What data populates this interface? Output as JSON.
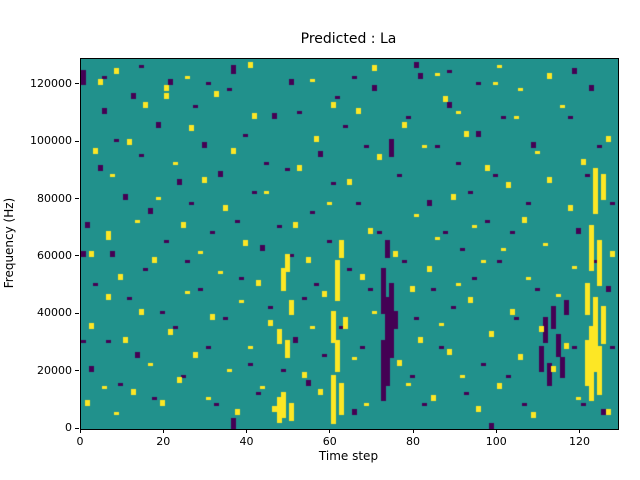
{
  "chart_data": {
    "type": "heatmap",
    "title": "Predicted : La",
    "xlabel": "Time step",
    "ylabel": "Frequency (Hz)",
    "x_range": [
      0,
      129
    ],
    "y_range": [
      0,
      129
    ],
    "y_unit_scale": 1000,
    "x_ticks": {
      "values": [
        0,
        20,
        40,
        60,
        80,
        100,
        120
      ],
      "labels": [
        "0",
        "20",
        "40",
        "60",
        "80",
        "100",
        "120"
      ]
    },
    "y_ticks": {
      "values": [
        0,
        20,
        40,
        60,
        80,
        100,
        120
      ],
      "labels": [
        "0",
        "20000",
        "40000",
        "60000",
        "80000",
        "100000",
        "120000"
      ]
    },
    "grid": false,
    "legend": "none",
    "colors": {
      "background": "#21918c",
      "low": "#440154",
      "high": "#fde725"
    },
    "yellow_runs": [
      [
        1,
        8,
        9
      ],
      [
        2,
        35,
        36
      ],
      [
        2,
        60,
        61
      ],
      [
        3,
        96,
        97
      ],
      [
        4,
        120,
        121
      ],
      [
        5,
        14,
        14
      ],
      [
        6,
        45,
        46
      ],
      [
        6,
        66,
        68
      ],
      [
        7,
        88,
        88
      ],
      [
        8,
        5,
        5
      ],
      [
        8,
        124,
        125
      ],
      [
        9,
        52,
        53
      ],
      [
        10,
        30,
        31
      ],
      [
        11,
        99,
        100
      ],
      [
        12,
        12,
        13
      ],
      [
        13,
        72,
        72
      ],
      [
        14,
        40,
        41
      ],
      [
        15,
        112,
        113
      ],
      [
        16,
        22,
        22
      ],
      [
        17,
        58,
        59
      ],
      [
        18,
        80,
        80
      ],
      [
        19,
        8,
        9
      ],
      [
        20,
        115,
        116
      ],
      [
        20,
        118,
        119
      ],
      [
        21,
        33,
        34
      ],
      [
        22,
        92,
        92
      ],
      [
        23,
        16,
        17
      ],
      [
        24,
        70,
        71
      ],
      [
        25,
        47,
        47
      ],
      [
        25,
        122,
        122
      ],
      [
        26,
        104,
        105
      ],
      [
        27,
        25,
        26
      ],
      [
        28,
        61,
        61
      ],
      [
        29,
        86,
        87
      ],
      [
        30,
        10,
        10
      ],
      [
        31,
        38,
        39
      ],
      [
        32,
        116,
        117
      ],
      [
        33,
        54,
        54
      ],
      [
        34,
        76,
        77
      ],
      [
        35,
        20,
        20
      ],
      [
        36,
        96,
        97
      ],
      [
        37,
        5,
        6
      ],
      [
        38,
        44,
        44
      ],
      [
        39,
        64,
        65
      ],
      [
        40,
        28,
        28
      ],
      [
        40,
        126,
        127
      ],
      [
        41,
        108,
        109
      ],
      [
        42,
        50,
        51
      ],
      [
        43,
        14,
        14
      ],
      [
        44,
        82,
        82
      ],
      [
        45,
        36,
        37
      ],
      [
        46,
        6,
        7
      ],
      [
        47,
        2,
        10
      ],
      [
        47,
        30,
        34
      ],
      [
        48,
        4,
        12
      ],
      [
        48,
        48,
        55
      ],
      [
        49,
        25,
        30
      ],
      [
        49,
        55,
        60
      ],
      [
        50,
        3,
        8
      ],
      [
        50,
        40,
        44
      ],
      [
        51,
        70,
        71
      ],
      [
        52,
        90,
        91
      ],
      [
        53,
        18,
        19
      ],
      [
        54,
        58,
        59
      ],
      [
        55,
        35,
        35
      ],
      [
        55,
        121,
        121
      ],
      [
        56,
        100,
        101
      ],
      [
        57,
        12,
        13
      ],
      [
        58,
        46,
        47
      ],
      [
        59,
        78,
        78
      ],
      [
        60,
        2,
        18
      ],
      [
        60,
        30,
        40
      ],
      [
        60,
        112,
        113
      ],
      [
        61,
        20,
        30
      ],
      [
        61,
        45,
        58
      ],
      [
        62,
        5,
        15
      ],
      [
        62,
        60,
        65
      ],
      [
        63,
        35,
        38
      ],
      [
        64,
        85,
        86
      ],
      [
        65,
        24,
        24
      ],
      [
        66,
        110,
        111
      ],
      [
        67,
        52,
        53
      ],
      [
        68,
        8,
        8
      ],
      [
        69,
        68,
        69
      ],
      [
        70,
        40,
        40
      ],
      [
        70,
        125,
        126
      ],
      [
        71,
        94,
        95
      ],
      [
        75,
        60,
        61
      ],
      [
        76,
        22,
        23
      ],
      [
        77,
        105,
        106
      ],
      [
        78,
        15,
        15
      ],
      [
        79,
        48,
        49
      ],
      [
        80,
        74,
        74
      ],
      [
        81,
        30,
        31
      ],
      [
        82,
        98,
        98
      ],
      [
        83,
        55,
        56
      ],
      [
        84,
        10,
        11
      ],
      [
        85,
        66,
        66
      ],
      [
        85,
        123,
        123
      ],
      [
        86,
        36,
        36
      ],
      [
        87,
        114,
        115
      ],
      [
        88,
        26,
        27
      ],
      [
        89,
        80,
        81
      ],
      [
        90,
        50,
        50
      ],
      [
        90,
        110,
        110
      ],
      [
        91,
        18,
        18
      ],
      [
        92,
        102,
        103
      ],
      [
        93,
        44,
        45
      ],
      [
        94,
        70,
        70
      ],
      [
        95,
        6,
        7
      ],
      [
        96,
        58,
        58
      ],
      [
        97,
        90,
        91
      ],
      [
        98,
        32,
        33
      ],
      [
        99,
        120,
        120
      ],
      [
        100,
        14,
        15
      ],
      [
        100,
        126,
        126
      ],
      [
        101,
        62,
        62
      ],
      [
        102,
        84,
        85
      ],
      [
        103,
        40,
        41
      ],
      [
        104,
        108,
        108
      ],
      [
        105,
        24,
        25
      ],
      [
        105,
        118,
        118
      ],
      [
        106,
        72,
        73
      ],
      [
        107,
        52,
        52
      ],
      [
        108,
        4,
        5
      ],
      [
        109,
        96,
        96
      ],
      [
        110,
        34,
        35
      ],
      [
        111,
        64,
        64
      ],
      [
        112,
        86,
        87
      ],
      [
        112,
        122,
        123
      ],
      [
        113,
        20,
        21
      ],
      [
        114,
        46,
        46
      ],
      [
        115,
        112,
        112
      ],
      [
        116,
        28,
        29
      ],
      [
        117,
        76,
        77
      ],
      [
        118,
        56,
        56
      ],
      [
        119,
        10,
        10
      ],
      [
        120,
        92,
        93
      ],
      [
        121,
        15,
        30
      ],
      [
        121,
        40,
        50
      ],
      [
        122,
        10,
        35
      ],
      [
        122,
        55,
        70
      ],
      [
        123,
        20,
        45
      ],
      [
        123,
        75,
        90
      ],
      [
        124,
        12,
        28
      ],
      [
        124,
        50,
        65
      ],
      [
        125,
        30,
        42
      ],
      [
        125,
        80,
        88
      ],
      [
        126,
        5,
        6
      ],
      [
        126,
        100,
        101
      ],
      [
        127,
        60,
        61
      ]
    ],
    "purple_runs": [
      [
        0,
        30,
        30
      ],
      [
        0,
        60,
        61
      ],
      [
        0,
        120,
        124
      ],
      [
        1,
        70,
        71
      ],
      [
        2,
        20,
        21
      ],
      [
        3,
        50,
        50
      ],
      [
        4,
        90,
        91
      ],
      [
        5,
        110,
        111
      ],
      [
        5,
        122,
        122
      ],
      [
        6,
        30,
        30
      ],
      [
        7,
        60,
        61
      ],
      [
        8,
        100,
        100
      ],
      [
        9,
        15,
        15
      ],
      [
        10,
        80,
        81
      ],
      [
        11,
        45,
        45
      ],
      [
        12,
        115,
        116
      ],
      [
        13,
        25,
        26
      ],
      [
        14,
        95,
        95
      ],
      [
        14,
        126,
        126
      ],
      [
        15,
        55,
        55
      ],
      [
        16,
        75,
        76
      ],
      [
        17,
        10,
        10
      ],
      [
        18,
        105,
        106
      ],
      [
        19,
        40,
        40
      ],
      [
        20,
        65,
        65
      ],
      [
        21,
        120,
        121
      ],
      [
        22,
        35,
        35
      ],
      [
        23,
        85,
        86
      ],
      [
        24,
        18,
        18
      ],
      [
        25,
        58,
        58
      ],
      [
        26,
        78,
        78
      ],
      [
        27,
        112,
        112
      ],
      [
        28,
        48,
        48
      ],
      [
        29,
        98,
        99
      ],
      [
        30,
        28,
        28
      ],
      [
        30,
        120,
        120
      ],
      [
        31,
        68,
        68
      ],
      [
        32,
        8,
        8
      ],
      [
        33,
        88,
        89
      ],
      [
        34,
        38,
        38
      ],
      [
        35,
        118,
        118
      ],
      [
        36,
        0,
        3
      ],
      [
        36,
        124,
        126
      ],
      [
        37,
        72,
        72
      ],
      [
        38,
        52,
        52
      ],
      [
        39,
        102,
        102
      ],
      [
        40,
        22,
        22
      ],
      [
        41,
        82,
        82
      ],
      [
        42,
        12,
        12
      ],
      [
        43,
        62,
        63
      ],
      [
        44,
        92,
        92
      ],
      [
        45,
        42,
        42
      ],
      [
        46,
        108,
        109
      ],
      [
        47,
        70,
        70
      ],
      [
        48,
        20,
        20
      ],
      [
        49,
        90,
        90
      ],
      [
        50,
        60,
        60
      ],
      [
        50,
        120,
        121
      ],
      [
        51,
        30,
        31
      ],
      [
        52,
        110,
        110
      ],
      [
        53,
        45,
        45
      ],
      [
        54,
        15,
        16
      ],
      [
        55,
        75,
        75
      ],
      [
        56,
        50,
        50
      ],
      [
        57,
        95,
        96
      ],
      [
        58,
        25,
        25
      ],
      [
        59,
        65,
        65
      ],
      [
        60,
        85,
        85
      ],
      [
        61,
        115,
        115
      ],
      [
        62,
        35,
        35
      ],
      [
        63,
        105,
        105
      ],
      [
        64,
        55,
        55
      ],
      [
        65,
        5,
        6
      ],
      [
        65,
        122,
        122
      ],
      [
        66,
        78,
        78
      ],
      [
        67,
        28,
        28
      ],
      [
        68,
        98,
        98
      ],
      [
        69,
        48,
        48
      ],
      [
        70,
        118,
        119
      ],
      [
        71,
        68,
        68
      ],
      [
        72,
        10,
        30
      ],
      [
        72,
        40,
        55
      ],
      [
        73,
        15,
        45
      ],
      [
        73,
        60,
        65
      ],
      [
        74,
        25,
        50
      ],
      [
        74,
        95,
        100
      ],
      [
        75,
        35,
        40
      ],
      [
        76,
        88,
        88
      ],
      [
        77,
        58,
        58
      ],
      [
        78,
        108,
        108
      ],
      [
        79,
        18,
        18
      ],
      [
        80,
        38,
        38
      ],
      [
        80,
        126,
        127
      ],
      [
        81,
        122,
        123
      ],
      [
        82,
        8,
        8
      ],
      [
        83,
        78,
        79
      ],
      [
        84,
        48,
        48
      ],
      [
        85,
        98,
        98
      ],
      [
        86,
        28,
        28
      ],
      [
        87,
        68,
        68
      ],
      [
        88,
        112,
        113
      ],
      [
        88,
        124,
        124
      ],
      [
        89,
        42,
        42
      ],
      [
        90,
        92,
        92
      ],
      [
        91,
        62,
        62
      ],
      [
        92,
        12,
        12
      ],
      [
        93,
        82,
        82
      ],
      [
        94,
        52,
        52
      ],
      [
        95,
        102,
        103
      ],
      [
        95,
        120,
        120
      ],
      [
        96,
        22,
        22
      ],
      [
        97,
        72,
        72
      ],
      [
        98,
        0,
        1
      ],
      [
        99,
        88,
        88
      ],
      [
        100,
        58,
        58
      ],
      [
        101,
        108,
        108
      ],
      [
        102,
        18,
        18
      ],
      [
        103,
        68,
        68
      ],
      [
        104,
        38,
        38
      ],
      [
        105,
        118,
        118
      ],
      [
        106,
        8,
        8
      ],
      [
        107,
        78,
        78
      ],
      [
        108,
        98,
        99
      ],
      [
        109,
        48,
        48
      ],
      [
        110,
        20,
        28
      ],
      [
        111,
        30,
        38
      ],
      [
        112,
        15,
        22
      ],
      [
        113,
        35,
        42
      ],
      [
        114,
        25,
        32
      ],
      [
        115,
        18,
        24
      ],
      [
        116,
        40,
        44
      ],
      [
        117,
        108,
        108
      ],
      [
        118,
        28,
        28
      ],
      [
        118,
        124,
        125
      ],
      [
        119,
        68,
        69
      ],
      [
        120,
        8,
        8
      ],
      [
        121,
        88,
        88
      ],
      [
        122,
        118,
        119
      ],
      [
        123,
        58,
        58
      ],
      [
        124,
        98,
        98
      ],
      [
        125,
        5,
        6
      ],
      [
        126,
        48,
        49
      ],
      [
        127,
        28,
        28
      ],
      [
        127,
        78,
        78
      ]
    ]
  }
}
